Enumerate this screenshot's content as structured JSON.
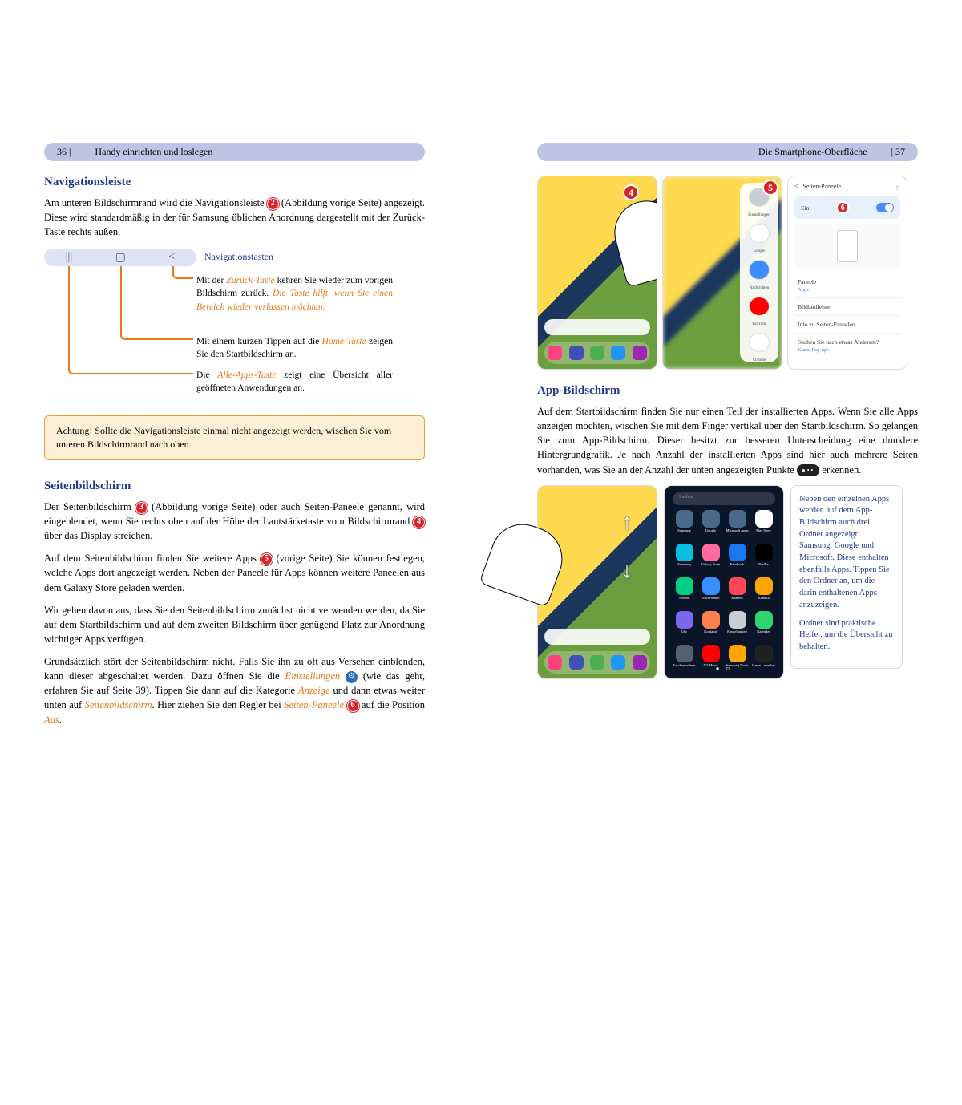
{
  "left_page": {
    "page_number": "36 |",
    "chapter_title": "Handy einrichten und loslegen",
    "section1_title": "Navigationsleiste",
    "intro": "Am unteren Bildschirmrand wird die Navigationsleiste",
    "intro_cont": "(Abbildung vorige Seite) angezeigt. Diese wird standardmäßig in der für Samsung üblichen Anordnung dargestellt mit der Zurück-Taste rechts außen.",
    "nav_label": "Navigationstasten",
    "nav1_pre": "Mit der ",
    "nav1_orange1": "Zurück-Taste",
    "nav1_mid": " kehren Sie wieder zum vorigen Bildschirm zurück. ",
    "nav1_orange2": "Die Taste hilft, wenn Sie einen Bereich wieder verlassen möchten.",
    "nav2_pre": "Mit einem kurzen Tippen auf die ",
    "nav2_orange": "Home-Taste",
    "nav2_post": " zeigen Sie den Startbildschirm an.",
    "nav3_pre": "Die ",
    "nav3_orange": "Alle-Apps-Taste",
    "nav3_post": " zeigt eine Übersicht aller geöffneten Anwendungen an.",
    "warning": "Achtung! Sollte die Navigationsleiste einmal nicht angezeigt werden, wischen Sie vom unteren Bildschirmrand nach oben.",
    "section2_title": "Seitenbildschirm",
    "p2_1a": "Der Seitenbildschirm ",
    "p2_1b": " (Abbildung vorige Seite) oder auch Seiten-Paneele genannt, wird eingeblendet, wenn Sie rechts oben auf der Höhe der Lautstärketaste vom Bildschirmrand ",
    "p2_1c": " über das Display streichen.",
    "p2_2a": "Auf dem Seitenbildschirm finden Sie weitere Apps ",
    "p2_2b": " (vorige Seite) Sie können festlegen, welche Apps dort angezeigt werden. Neben der Paneele für Apps können weitere Paneelen aus dem Galaxy Store geladen werden.",
    "p2_3": "Wir gehen davon aus, dass Sie den Seitenbildschirm zunächst nicht verwenden werden, da Sie auf dem Startbildschirm und auf dem zweiten Bildschirm über genügend Platz zur Anordnung wichtiger Apps verfügen.",
    "p2_4a": "Grundsätzlich stört der Seitenbildschirm nicht. Falls Sie ihn zu oft aus Versehen einblenden, kann dieser abgeschaltet werden. Dazu öffnen Sie die ",
    "p2_4_einstell": "Einstellungen",
    "p2_4b": " (wie das geht, erfahren Sie auf Seite 39). Tippen Sie dann auf die Kategorie ",
    "p2_4_anzeige": "Anzeige",
    "p2_4c": " und dann etwas weiter unten auf ",
    "p2_4_seitenb": "Seitenbildschirm",
    "p2_4d": ". Hier ziehen Sie den Regler bei ",
    "p2_4_seitenp": "Seiten-Paneele",
    "p2_4e": " auf die Position ",
    "p2_4_aus": "Aus",
    "p2_4f": "."
  },
  "right_page": {
    "page_number": "| 37",
    "chapter_title": "Die Smartphone-Oberfläche",
    "section_title": "App-Bildschirm",
    "p1a": "Auf dem Startbildschirm finden Sie nur einen Teil der installierten Apps. Wenn Sie alle Apps anzeigen möchten, wischen Sie mit dem Finger vertikal über den Startbildschirm. So gelangen Sie zum App-Bildschirm. Dieser besitzt zur besseren Unterscheidung eine dunklere Hintergrundgrafik. Je nach Anzahl der installierten Apps sind hier auch mehrere Seiten vorhanden, was Sie an der Anzahl der unten angezeigten Punkte ",
    "p1b": " erkennen.",
    "info_p1": "Neben den einzelnen Apps werden auf dem App-Bildschirm auch drei Ordner angezeigt: Samsung, Google und Microsoft. Diese enthalten ebenfalls Apps. Tippen Sie den Ordner an, um die darin enthaltenen Apps anzuzeigen.",
    "info_p2": "Ordner sind praktische Helfer, um die Übersicht zu behalten."
  },
  "markers": {
    "m2": "2",
    "m3": "3",
    "m4": "4",
    "m5": "5",
    "m6": "6"
  },
  "panel_apps": [
    {
      "label": "Einstellungen",
      "color": "#c9cdd4"
    },
    {
      "label": "Google",
      "color": "#ffffff"
    },
    {
      "label": "Nachrichten",
      "color": "#3a8cff"
    },
    {
      "label": "YouTube",
      "color": "#ff0000"
    },
    {
      "label": "Chrome",
      "color": "#ffffff"
    }
  ],
  "settings": {
    "header": "Seiten-Paneele",
    "toggle_label": "Ein",
    "row1": "Paneele",
    "row1_sub": "Apps",
    "row2": "Bildlaufleiste",
    "row3": "Info zu Seiten-Paneelen",
    "row4": "Suchen Sie nach etwas Anderem?",
    "row4_sub": "Kurze Pop-ups"
  },
  "dark_apps": [
    {
      "label": "Samsung",
      "c": "#4a6a8a"
    },
    {
      "label": "Google",
      "c": "#4a6a8a"
    },
    {
      "label": "Microsoft Apps",
      "c": "#4a6a8a"
    },
    {
      "label": "Play Store",
      "c": "#ffffff"
    },
    {
      "label": "Samsung",
      "c": "#0abde3"
    },
    {
      "label": "Galaxy Store",
      "c": "#ff6b9d"
    },
    {
      "label": "Facebook",
      "c": "#1877f2"
    },
    {
      "label": "Netflix",
      "c": "#000000"
    },
    {
      "label": "Telefon",
      "c": "#00d084"
    },
    {
      "label": "Nachrichten",
      "c": "#3a8cff"
    },
    {
      "label": "Kamera",
      "c": "#ff4757"
    },
    {
      "label": "Kamera",
      "c": "#ffa502"
    },
    {
      "label": "Uhr",
      "c": "#7b68ee"
    },
    {
      "label": "Kontakte",
      "c": "#ff7f50"
    },
    {
      "label": "Einstellungen",
      "c": "#c9cdd4"
    },
    {
      "label": "Kalender",
      "c": "#2ed573"
    },
    {
      "label": "Taschenrechner",
      "c": "#57606f"
    },
    {
      "label": "YT Music",
      "c": "#ff0000"
    },
    {
      "label": "Samsung Notes",
      "c": "#ffa502"
    },
    {
      "label": "Game Launcher",
      "c": "#212121"
    }
  ],
  "dock_colors": [
    "#ff4081",
    "#3f51b5",
    "#4caf50",
    "#2196f3",
    "#9c27b0"
  ],
  "colors": {
    "header_bg": "#c0c4e4",
    "accent_blue": "#223a8a",
    "orange": "#e67817",
    "marker_red": "#d8232a",
    "warn_bg": "#fdf0d7"
  }
}
